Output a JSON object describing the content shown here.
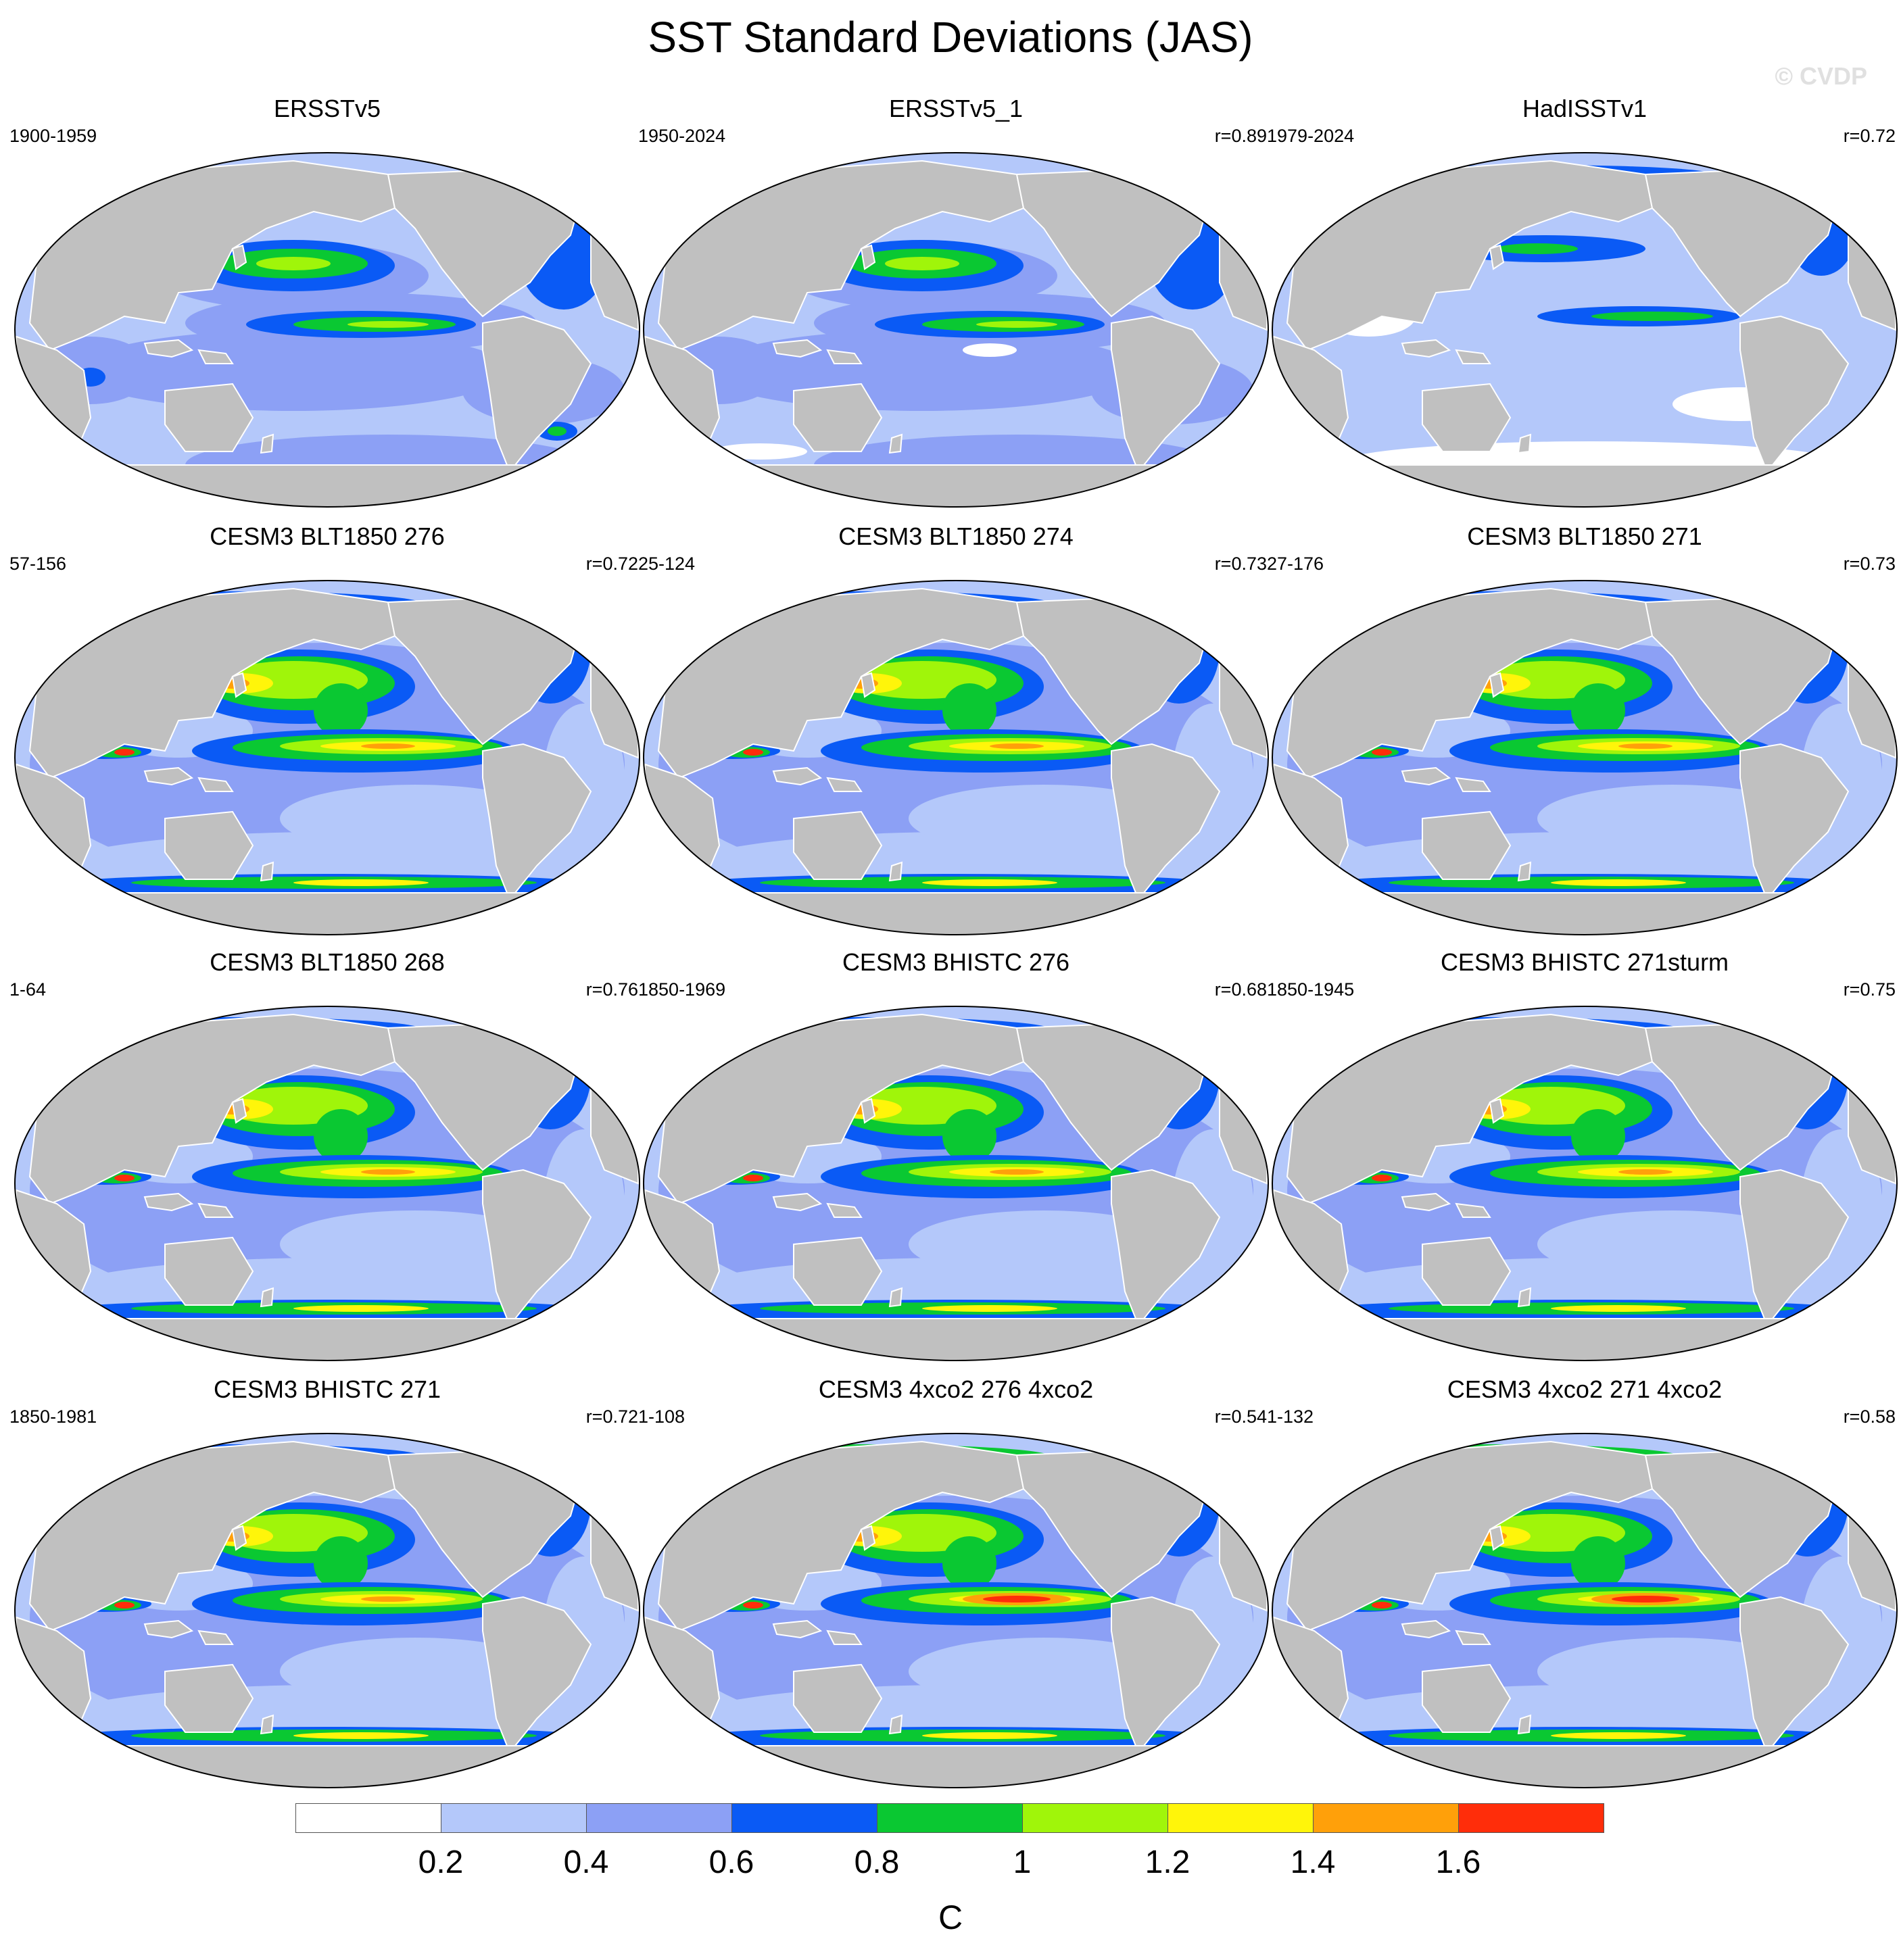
{
  "title": "SST Standard Deviations (JAS)",
  "copyright": "© CVDP",
  "panels": [
    {
      "title": "ERSSTv5",
      "years": "1900-1959",
      "r": "",
      "style": "obs1"
    },
    {
      "title": "ERSSTv5_1",
      "years": "1950-2024",
      "r": "r=0.89",
      "style": "obs2"
    },
    {
      "title": "HadISSTv1",
      "years": "1979-2024",
      "r": "r=0.72",
      "style": "obs3"
    },
    {
      "title": "CESM3 BLT1850 276",
      "years": "57-156",
      "r": "r=0.72",
      "style": "model"
    },
    {
      "title": "CESM3 BLT1850 274",
      "years": "25-124",
      "r": "r=0.73",
      "style": "model"
    },
    {
      "title": "CESM3 BLT1850 271",
      "years": "27-176",
      "r": "r=0.73",
      "style": "model"
    },
    {
      "title": "CESM3 BLT1850 268",
      "years": "1-64",
      "r": "r=0.76",
      "style": "model"
    },
    {
      "title": "CESM3 BHISTC 276",
      "years": "1850-1969",
      "r": "r=0.68",
      "style": "model"
    },
    {
      "title": "CESM3 BHISTC 271sturm",
      "years": "1850-1945",
      "r": "r=0.75",
      "style": "model"
    },
    {
      "title": "CESM3 BHISTC 271",
      "years": "1850-1981",
      "r": "r=0.72",
      "style": "model"
    },
    {
      "title": "CESM3 4xco2 276 4xco2",
      "years": "1-108",
      "r": "r=0.54",
      "style": "co2"
    },
    {
      "title": "CESM3 4xco2 271 4xco2",
      "years": "1-132",
      "r": "r=0.58",
      "style": "co2"
    }
  ],
  "colorbar": {
    "colors": [
      "#ffffff",
      "#b4c8fa",
      "#8ca0f5",
      "#0a5af5",
      "#0ac832",
      "#a0f50a",
      "#fff50a",
      "#ffa00a",
      "#ff2d0a"
    ],
    "labels": [
      "0.2",
      "0.4",
      "0.6",
      "0.8",
      "1",
      "1.2",
      "1.4",
      "1.6"
    ],
    "unit": "C"
  },
  "colors": {
    "land": "#c0c0c0",
    "ocean_background": "#b4c8fa"
  }
}
